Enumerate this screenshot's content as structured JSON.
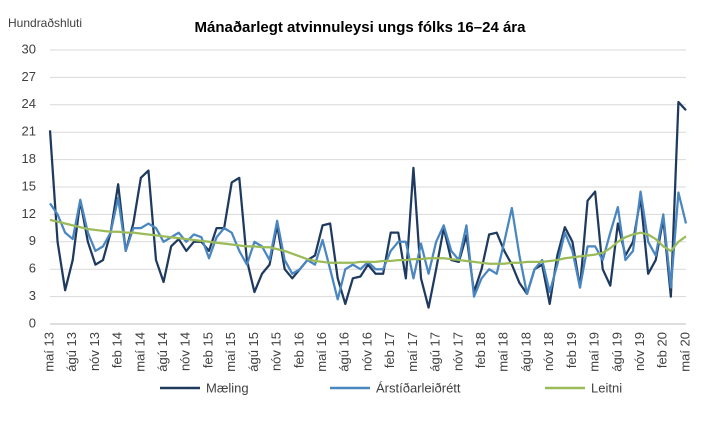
{
  "chart_data": {
    "type": "line",
    "title": "Mánaðarlegt atvinnuleysi ungs fólks 16–24 ára",
    "y_label": "Hundraðshluti",
    "categories": [
      "maí 13",
      null,
      null,
      "ágú 13",
      null,
      null,
      "nóv 13",
      null,
      null,
      "feb 14",
      null,
      null,
      "maí 14",
      null,
      null,
      "ágú 14",
      null,
      null,
      "nóv 14",
      null,
      null,
      "feb 15",
      null,
      null,
      "maí 15",
      null,
      null,
      "ágú 15",
      null,
      null,
      "nóv 15",
      null,
      null,
      "feb 16",
      null,
      null,
      "maí 16",
      null,
      null,
      "ágú 16",
      null,
      null,
      "nóv 16",
      null,
      null,
      "feb 17",
      null,
      null,
      "maí 17",
      null,
      null,
      "ágú 17",
      null,
      null,
      "nóv 17",
      null,
      null,
      "feb 18",
      null,
      null,
      "maí 18",
      null,
      null,
      "ágú 18",
      null,
      null,
      "nóv 18",
      null,
      null,
      "feb 19",
      null,
      null,
      "maí 19",
      null,
      null,
      "ágú 19",
      null,
      null,
      "nóv 19",
      null,
      null,
      "feb 20",
      null,
      null,
      "maí 20"
    ],
    "series": [
      {
        "name": "Mæling",
        "color": "#1f3a5f",
        "values": [
          21.2,
          9,
          3.7,
          7,
          13.5,
          9,
          6.5,
          7,
          10,
          15.3,
          8,
          11,
          16,
          16.8,
          7,
          4.6,
          8.5,
          9.3,
          8,
          9,
          9,
          8,
          10.5,
          10.5,
          15.5,
          16,
          7,
          3.5,
          5.5,
          6.5,
          10.8,
          6,
          5,
          6,
          7,
          7.5,
          10.8,
          11,
          5,
          2.2,
          5,
          5.2,
          6.5,
          5.5,
          5.5,
          10,
          10,
          5,
          17.1,
          5,
          1.8,
          6,
          10.5,
          7,
          6.8,
          9.7,
          3.5,
          6,
          9.8,
          10,
          8,
          6.5,
          4.5,
          3.3,
          6,
          6.5,
          2.2,
          7.5,
          10.6,
          9,
          4,
          13.5,
          14.5,
          6,
          4.2,
          11,
          7.5,
          9,
          13.8,
          5.5,
          7,
          11.5,
          3,
          24.3,
          23.4
        ]
      },
      {
        "name": "Árstíðarleiðrétt",
        "color": "#4a86c0",
        "values": [
          13.2,
          12,
          10,
          9.3,
          13.6,
          10,
          8,
          8.5,
          10,
          13.8,
          8,
          10.5,
          10.5,
          11,
          10.5,
          9,
          9.5,
          10,
          9,
          9.8,
          9.5,
          7.2,
          9.5,
          10.5,
          10,
          8,
          6.5,
          9,
          8.5,
          7,
          11.3,
          7,
          5.5,
          6,
          7,
          6.5,
          9.2,
          6,
          2.7,
          6,
          6.5,
          6,
          6.8,
          6,
          6,
          8,
          9,
          9,
          5,
          8.8,
          5.5,
          9,
          10.8,
          8,
          7,
          10.8,
          3,
          5,
          6,
          5.5,
          9,
          12.7,
          7.5,
          3.3,
          6,
          7,
          3.5,
          6.5,
          10,
          8,
          4,
          8.5,
          8.5,
          7,
          10,
          12.8,
          7,
          8,
          14.5,
          9,
          7.5,
          12,
          4,
          14.4,
          11
        ]
      },
      {
        "name": "Leitni",
        "color": "#9bbb59",
        "values": [
          11.4,
          11.2,
          11,
          10.8,
          10.6,
          10.4,
          10.3,
          10.2,
          10.1,
          10.1,
          10,
          10,
          9.9,
          9.8,
          9.7,
          9.6,
          9.5,
          9.4,
          9.3,
          9.2,
          9.1,
          9,
          8.9,
          8.8,
          8.7,
          8.6,
          8.5,
          8.5,
          8.4,
          8.4,
          8.2,
          8,
          7.7,
          7.4,
          7.1,
          6.9,
          6.8,
          6.7,
          6.7,
          6.7,
          6.7,
          6.8,
          6.8,
          6.8,
          6.9,
          6.9,
          7,
          7,
          7.1,
          7.1,
          7.2,
          7.2,
          7.2,
          7.1,
          7,
          6.9,
          6.8,
          6.7,
          6.6,
          6.6,
          6.6,
          6.7,
          6.7,
          6.8,
          6.8,
          6.8,
          6.9,
          7,
          7.2,
          7.3,
          7.4,
          7.5,
          7.6,
          7.8,
          8.3,
          9,
          9.5,
          9.8,
          10,
          9.8,
          9.3,
          8.5,
          8,
          9,
          9.6
        ]
      }
    ],
    "ylim": [
      0,
      30
    ],
    "yticks": [
      0,
      3,
      6,
      9,
      12,
      15,
      18,
      21,
      24,
      27,
      30
    ],
    "grid": true,
    "legend": "bottom"
  }
}
